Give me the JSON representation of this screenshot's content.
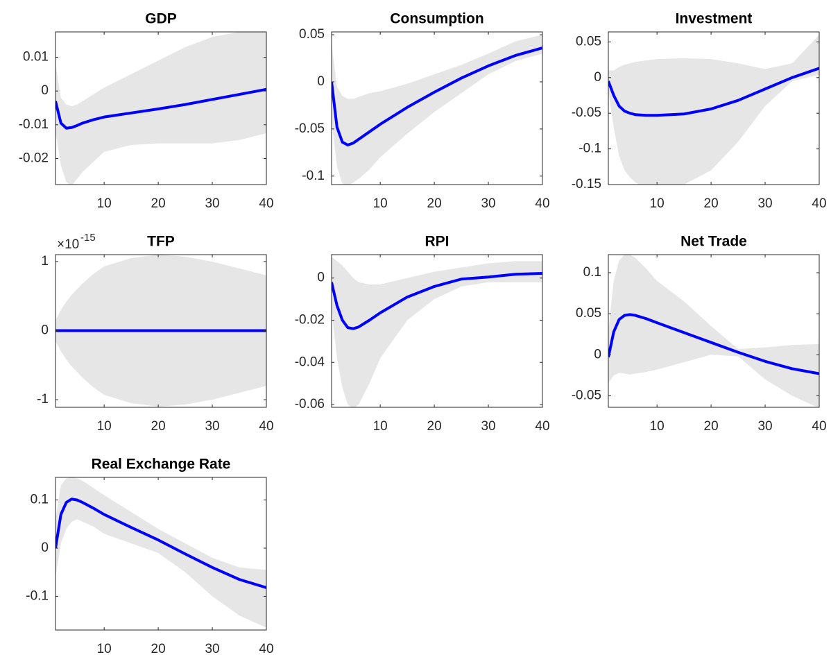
{
  "chart_data": [
    {
      "type": "line",
      "title": "GDP",
      "x": [
        1,
        2,
        3,
        4,
        5,
        6,
        8,
        10,
        15,
        20,
        25,
        30,
        35,
        40
      ],
      "series": [
        {
          "color": "#0000ff",
          "values": [
            -0.003,
            -0.0095,
            -0.011,
            -0.0108,
            -0.0102,
            -0.0095,
            -0.0085,
            -0.0077,
            -0.0065,
            -0.0053,
            -0.004,
            -0.0025,
            -0.001,
            0.0005
          ]
        }
      ],
      "band": {
        "color": "#e6e6e6",
        "upper": [
          0.008,
          -0.002,
          -0.004,
          -0.0045,
          -0.004,
          -0.003,
          -0.001,
          0.001,
          0.005,
          0.009,
          0.013,
          0.016,
          0.0175,
          0.0175
        ],
        "lower": [
          -0.012,
          -0.022,
          -0.027,
          -0.028,
          -0.026,
          -0.024,
          -0.021,
          -0.018,
          -0.016,
          -0.0155,
          -0.0155,
          -0.0155,
          -0.0145,
          -0.0125
        ]
      },
      "xlim": [
        1,
        40
      ],
      "xticks": [
        10,
        20,
        30,
        40
      ],
      "ylim": [
        -0.0277,
        0.0175
      ],
      "yticks": [
        -0.02,
        -0.01,
        0,
        0.01
      ]
    },
    {
      "type": "line",
      "title": "Consumption",
      "x": [
        1,
        2,
        3,
        4,
        5,
        6,
        8,
        10,
        15,
        20,
        25,
        30,
        35,
        40
      ],
      "series": [
        {
          "color": "#0000ff",
          "values": [
            0,
            -0.048,
            -0.064,
            -0.067,
            -0.065,
            -0.061,
            -0.053,
            -0.045,
            -0.027,
            -0.011,
            0.004,
            0.017,
            0.028,
            0.036
          ]
        }
      ],
      "band": {
        "color": "#e6e6e6",
        "upper": [
          0.04,
          -0.005,
          -0.015,
          -0.018,
          -0.018,
          -0.016,
          -0.012,
          -0.01,
          -0.002,
          0.008,
          0.018,
          0.03,
          0.043,
          0.05
        ],
        "lower": [
          -0.04,
          -0.09,
          -0.108,
          -0.11,
          -0.107,
          -0.103,
          -0.093,
          -0.08,
          -0.055,
          -0.032,
          -0.012,
          0.008,
          0.022,
          0.03
        ]
      },
      "xlim": [
        1,
        40
      ],
      "xticks": [
        10,
        20,
        30,
        40
      ],
      "ylim": [
        -0.109,
        0.053
      ],
      "yticks": [
        -0.1,
        -0.05,
        0,
        0.05
      ]
    },
    {
      "type": "line",
      "title": "Investment",
      "x": [
        1,
        2,
        3,
        4,
        5,
        6,
        8,
        10,
        15,
        20,
        25,
        30,
        35,
        40
      ],
      "series": [
        {
          "color": "#0000ff",
          "values": [
            -0.005,
            -0.025,
            -0.04,
            -0.047,
            -0.05,
            -0.052,
            -0.053,
            -0.053,
            -0.051,
            -0.044,
            -0.032,
            -0.016,
            0,
            0.013
          ]
        }
      ],
      "band": {
        "color": "#e6e6e6",
        "upper": [
          0.01,
          0.01,
          0.015,
          0.018,
          0.02,
          0.022,
          0.024,
          0.026,
          0.027,
          0.026,
          0.02,
          0.012,
          0.02,
          0.06
        ],
        "lower": [
          -0.02,
          -0.07,
          -0.11,
          -0.13,
          -0.14,
          -0.147,
          -0.155,
          -0.157,
          -0.15,
          -0.13,
          -0.09,
          -0.04,
          -0.005,
          0.004
        ]
      },
      "xlim": [
        1,
        40
      ],
      "xticks": [
        10,
        20,
        30,
        40
      ],
      "ylim": [
        -0.15,
        0.064
      ],
      "yticks": [
        -0.15,
        -0.1,
        -0.05,
        0,
        0.05
      ]
    },
    {
      "type": "line",
      "title": "TFP",
      "y_multiplier": {
        "base": "×10",
        "exponent": "-15"
      },
      "x": [
        1,
        2,
        3,
        4,
        5,
        6,
        8,
        10,
        15,
        20,
        25,
        30,
        35,
        40
      ],
      "series": [
        {
          "color": "#0000ff",
          "values": [
            0,
            0,
            0,
            0,
            0,
            0,
            0,
            0,
            0,
            0,
            0,
            0,
            0,
            0
          ]
        }
      ],
      "band": {
        "color": "#e6e6e6",
        "upper": [
          0.15,
          0.3,
          0.42,
          0.52,
          0.6,
          0.68,
          0.82,
          0.93,
          1.05,
          1.1,
          1.07,
          1.0,
          0.9,
          0.8
        ],
        "lower": [
          -0.15,
          -0.3,
          -0.42,
          -0.52,
          -0.6,
          -0.68,
          -0.82,
          -0.93,
          -1.05,
          -1.1,
          -1.07,
          -1.0,
          -0.9,
          -0.8
        ]
      },
      "xlim": [
        1,
        40
      ],
      "xticks": [
        10,
        20,
        30,
        40
      ],
      "ylim": [
        -1.11,
        1.1
      ],
      "yticks": [
        -1,
        0,
        1
      ]
    },
    {
      "type": "line",
      "title": "RPI",
      "x": [
        1,
        2,
        3,
        4,
        5,
        6,
        8,
        10,
        15,
        20,
        25,
        30,
        35,
        40
      ],
      "series": [
        {
          "color": "#0000ff",
          "values": [
            -0.002,
            -0.013,
            -0.02,
            -0.0235,
            -0.024,
            -0.0232,
            -0.02,
            -0.0165,
            -0.009,
            -0.004,
            -0.0005,
            0.0005,
            0.0018,
            0.0022
          ]
        }
      ],
      "band": {
        "color": "#e6e6e6",
        "upper": [
          0.01,
          0.008,
          0.006,
          0.003,
          0,
          -0.002,
          -0.003,
          -0.003,
          0,
          0.003,
          0.005,
          0.007,
          0.008,
          0.008
        ],
        "lower": [
          -0.015,
          -0.038,
          -0.052,
          -0.06,
          -0.062,
          -0.06,
          -0.05,
          -0.038,
          -0.02,
          -0.01,
          -0.004,
          -0.002,
          -0.002,
          -0.002
        ]
      },
      "xlim": [
        1,
        40
      ],
      "xticks": [
        10,
        20,
        30,
        40
      ],
      "ylim": [
        -0.0613,
        0.0111
      ],
      "yticks": [
        -0.06,
        -0.04,
        -0.02,
        0
      ]
    },
    {
      "type": "line",
      "title": "Net Trade",
      "x": [
        1,
        2,
        3,
        4,
        5,
        6,
        8,
        10,
        15,
        20,
        25,
        30,
        35,
        40
      ],
      "series": [
        {
          "color": "#0000ff",
          "values": [
            -0.003,
            0.028,
            0.043,
            0.048,
            0.049,
            0.048,
            0.044,
            0.039,
            0.027,
            0.015,
            0.003,
            -0.008,
            -0.017,
            -0.023
          ]
        }
      ],
      "band": {
        "color": "#e6e6e6",
        "upper": [
          0.03,
          0.09,
          0.115,
          0.122,
          0.122,
          0.118,
          0.105,
          0.09,
          0.065,
          0.035,
          0.007,
          0.009,
          0.012,
          0.013
        ],
        "lower": [
          -0.035,
          -0.025,
          -0.022,
          -0.023,
          -0.024,
          -0.023,
          -0.021,
          -0.018,
          -0.009,
          0,
          -0.002,
          -0.03,
          -0.05,
          -0.065
        ]
      },
      "xlim": [
        1,
        40
      ],
      "xticks": [
        10,
        20,
        30,
        40
      ],
      "ylim": [
        -0.064,
        0.122
      ],
      "yticks": [
        -0.05,
        0,
        0.05,
        0.1
      ]
    },
    {
      "type": "line",
      "title": "Real Exchange Rate",
      "x": [
        1,
        2,
        3,
        4,
        5,
        6,
        8,
        10,
        15,
        20,
        25,
        30,
        35,
        40
      ],
      "series": [
        {
          "color": "#0000ff",
          "values": [
            0,
            0.07,
            0.095,
            0.102,
            0.1,
            0.095,
            0.083,
            0.07,
            0.043,
            0.017,
            -0.012,
            -0.04,
            -0.065,
            -0.082
          ]
        }
      ],
      "band": {
        "color": "#e6e6e6",
        "upper": [
          0.06,
          0.13,
          0.145,
          0.147,
          0.145,
          0.14,
          0.125,
          0.11,
          0.075,
          0.04,
          0.01,
          -0.02,
          -0.04,
          -0.045
        ],
        "lower": [
          -0.06,
          0.01,
          0.04,
          0.055,
          0.06,
          0.055,
          0.045,
          0.03,
          0.01,
          -0.01,
          -0.05,
          -0.1,
          -0.14,
          -0.165
        ]
      },
      "xlim": [
        1,
        40
      ],
      "xticks": [
        10,
        20,
        30,
        40
      ],
      "ylim": [
        -0.17,
        0.147
      ],
      "yticks": [
        -0.1,
        0,
        0.1
      ]
    }
  ]
}
